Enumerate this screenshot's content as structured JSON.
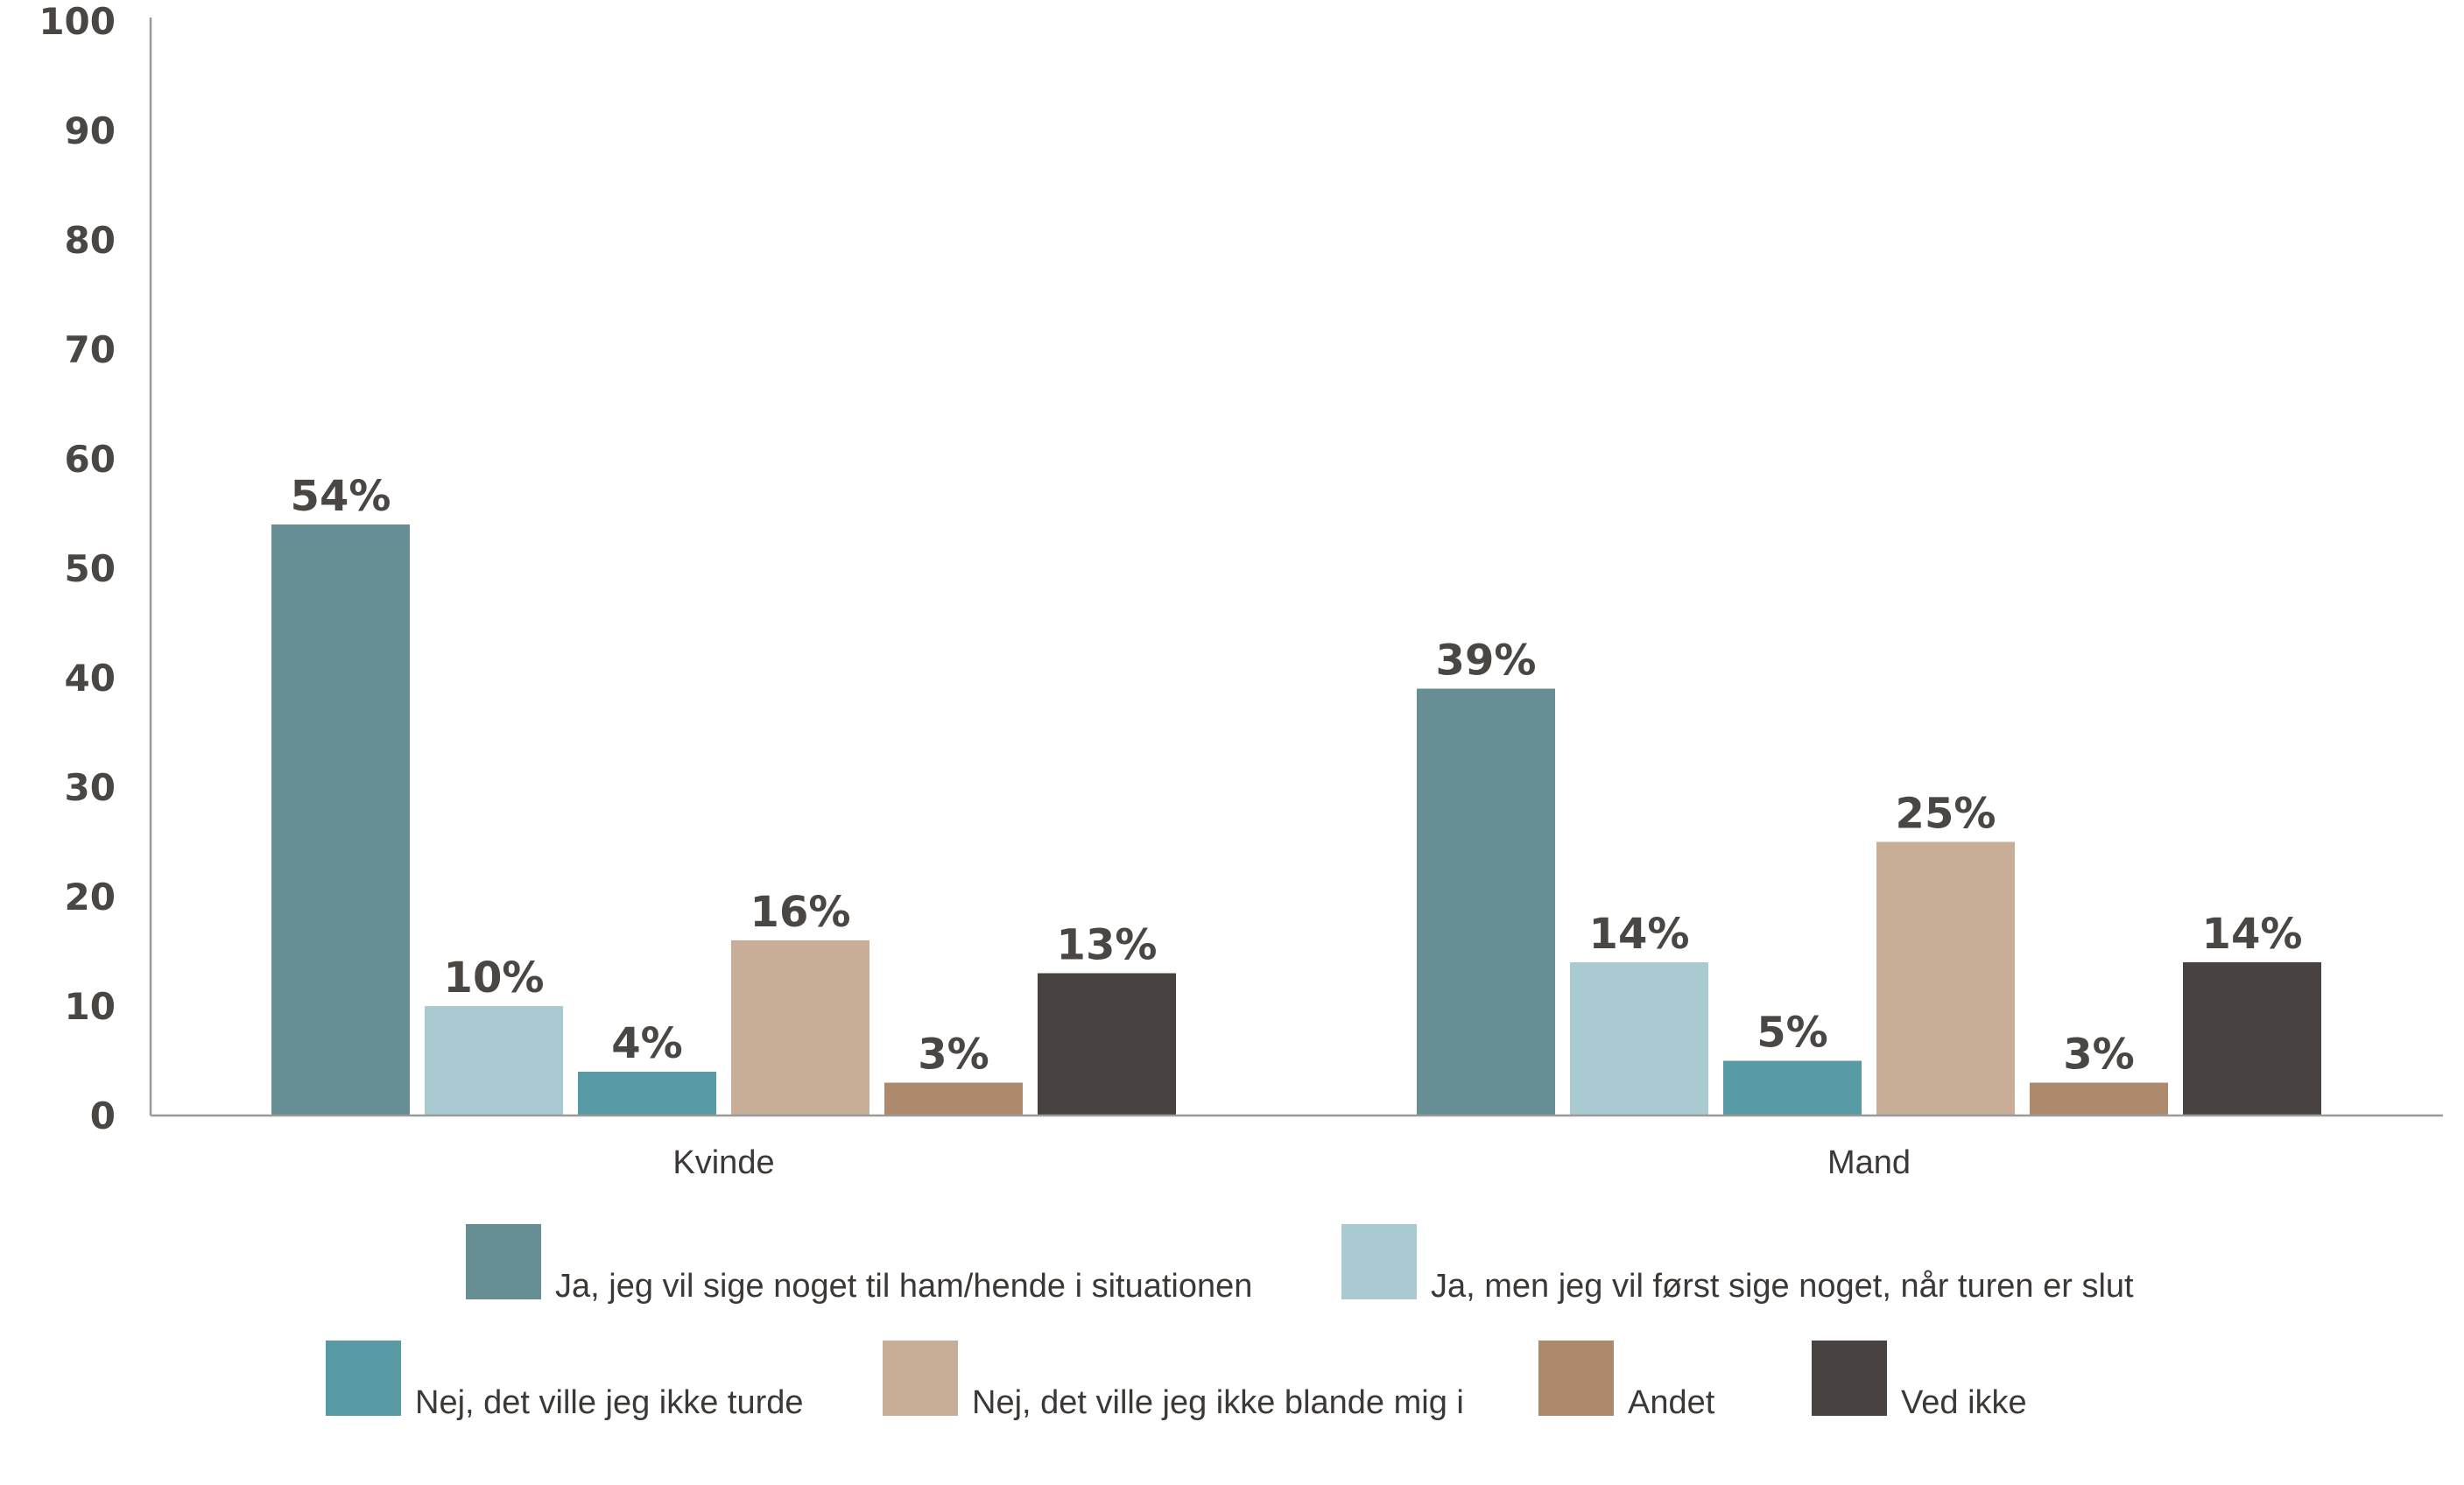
{
  "chart_data": {
    "type": "bar",
    "categories": [
      "Kvinde",
      "Mand"
    ],
    "series": [
      {
        "name": "Ja, jeg vil sige noget til ham/hende i situationen",
        "color": "#678e92",
        "values": [
          54,
          39
        ],
        "labels": [
          "54%",
          "39%"
        ]
      },
      {
        "name": "Ja, men jeg vil først sige noget, når turen er slut",
        "color": "#a8cad0",
        "values": [
          10,
          14
        ],
        "labels": [
          "10%",
          "14%"
        ]
      },
      {
        "name": "Nej, det ville jeg ikke turde",
        "color": "#589ba4",
        "values": [
          4,
          5
        ],
        "labels": [
          "4%",
          "5%"
        ]
      },
      {
        "name": "Nej, det ville jeg ikke blande mig i",
        "color": "#c8ae96",
        "values": [
          16,
          25
        ],
        "labels": [
          "16%",
          "25%"
        ]
      },
      {
        "name": "Andet",
        "color": "#ae8a6c",
        "values": [
          3,
          3
        ],
        "labels": [
          "3%",
          "3%"
        ]
      },
      {
        "name": "Ved ikke",
        "color": "#484341",
        "values": [
          13,
          14
        ],
        "labels": [
          "13%",
          "14%"
        ]
      }
    ],
    "ylim": [
      0,
      100
    ],
    "yticks": [
      0,
      10,
      20,
      30,
      40,
      50,
      60,
      70,
      80,
      90,
      100
    ],
    "title": "",
    "xlabel": "",
    "ylabel": "",
    "grid": false,
    "legend_position": "bottom"
  }
}
